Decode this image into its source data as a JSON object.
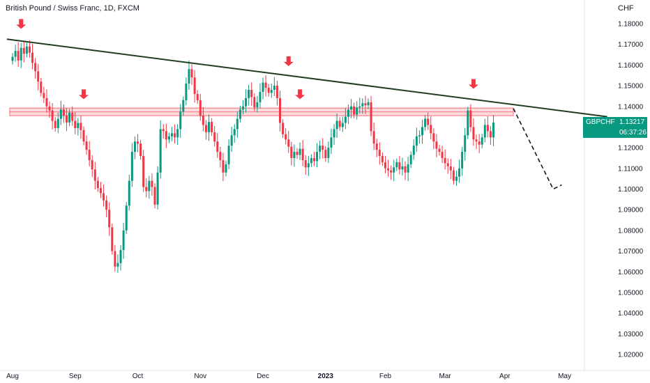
{
  "chart_data": {
    "type": "candlestick",
    "title": "British Pound / Swiss Franc, 1D, FXCM",
    "currency": "CHF",
    "symbol": "GBPCHF",
    "last_price": "1.13217",
    "countdown": "06:37:26",
    "ylim": [
      1.015,
      1.185
    ],
    "y_ticks": [
      "1.18000",
      "1.17000",
      "1.16000",
      "1.15000",
      "1.14000",
      "1.13000",
      "1.12000",
      "1.11000",
      "1.10000",
      "1.09000",
      "1.08000",
      "1.07000",
      "1.06000",
      "1.05000",
      "1.04000",
      "1.03000",
      "1.02000"
    ],
    "x_ticks": [
      {
        "label": "Aug",
        "t": 0,
        "bold": false
      },
      {
        "label": "Sep",
        "t": 22,
        "bold": false
      },
      {
        "label": "Oct",
        "t": 44,
        "bold": false
      },
      {
        "label": "Nov",
        "t": 66,
        "bold": false
      },
      {
        "label": "Dec",
        "t": 88,
        "bold": false
      },
      {
        "label": "2023",
        "t": 110,
        "bold": true
      },
      {
        "label": "Feb",
        "t": 131,
        "bold": false
      },
      {
        "label": "Mar",
        "t": 152,
        "bold": false
      },
      {
        "label": "Apr",
        "t": 173,
        "bold": false
      },
      {
        "label": "May",
        "t": 194,
        "bold": false
      }
    ],
    "x_range": [
      -2,
      209
    ],
    "closes": [
      1.164,
      1.1668,
      1.1622,
      1.1683,
      1.1655,
      1.169,
      1.166,
      1.161,
      1.157,
      1.152,
      1.1465,
      1.144,
      1.14,
      1.138,
      1.133,
      1.1295,
      1.134,
      1.1385,
      1.1355,
      1.1322,
      1.137,
      1.133,
      1.1295,
      1.132,
      1.1285,
      1.123,
      1.119,
      1.114,
      1.1095,
      1.104,
      1.1005,
      1.098,
      1.0945,
      1.09,
      1.0815,
      1.07,
      1.0625,
      1.0642,
      1.0705,
      1.08,
      1.092,
      1.104,
      1.118,
      1.123,
      1.122,
      1.116,
      1.101,
      1.099,
      1.104,
      1.101,
      1.0925,
      1.108,
      1.129,
      1.128,
      1.124,
      1.1255,
      1.127,
      1.125,
      1.129,
      1.1375,
      1.143,
      1.151,
      1.158,
      1.154,
      1.146,
      1.143,
      1.1355,
      1.131,
      1.1275,
      1.1325,
      1.1275,
      1.123,
      1.118,
      1.114,
      1.108,
      1.112,
      1.121,
      1.126,
      1.129,
      1.134,
      1.1385,
      1.14,
      1.144,
      1.148,
      1.1445,
      1.1395,
      1.142,
      1.147,
      1.1515,
      1.149,
      1.1465,
      1.148,
      1.15,
      1.144,
      1.132,
      1.1265,
      1.124,
      1.1205,
      1.115,
      1.118,
      1.1165,
      1.1195,
      1.114,
      1.1105,
      1.1125,
      1.115,
      1.1135,
      1.118,
      1.121,
      1.119,
      1.115,
      1.12,
      1.125,
      1.129,
      1.133,
      1.13,
      1.132,
      1.135,
      1.1385,
      1.14,
      1.136,
      1.1395,
      1.14,
      1.1415,
      1.1405,
      1.142,
      1.128,
      1.122,
      1.119,
      1.116,
      1.113,
      1.11,
      1.109,
      1.108,
      1.1105,
      1.113,
      1.1095,
      1.111,
      1.108,
      1.112,
      1.1165,
      1.121,
      1.1255,
      1.126,
      1.13,
      1.134,
      1.131,
      1.127,
      1.123,
      1.1195,
      1.118,
      1.115,
      1.1125,
      1.111,
      1.109,
      1.104,
      1.106,
      1.11,
      1.118,
      1.126,
      1.138,
      1.13,
      1.124,
      1.123,
      1.1215,
      1.125,
      1.131,
      1.128,
      1.125,
      1.1322
    ],
    "resistance_zone": [
      1.1355,
      1.1392
    ],
    "trendline": {
      "from": {
        "t": -2,
        "y": 1.1725
      },
      "to": {
        "t": 209,
        "y": 1.135
      }
    },
    "projection": [
      {
        "t": 176,
        "y": 1.139
      },
      {
        "t": 190,
        "y": 1.1
      },
      {
        "t": 193,
        "y": 1.102
      }
    ],
    "markers": [
      {
        "t": 3,
        "y": 1.1775
      },
      {
        "t": 25,
        "y": 1.1435
      },
      {
        "t": 97,
        "y": 1.1595
      },
      {
        "t": 101,
        "y": 1.1435
      },
      {
        "t": 162,
        "y": 1.1485
      }
    ],
    "colors": {
      "up": "#089981",
      "down": "#f23645",
      "zone": "#f23645",
      "trend": "#1f3d1f",
      "marker": "#f23645"
    }
  }
}
